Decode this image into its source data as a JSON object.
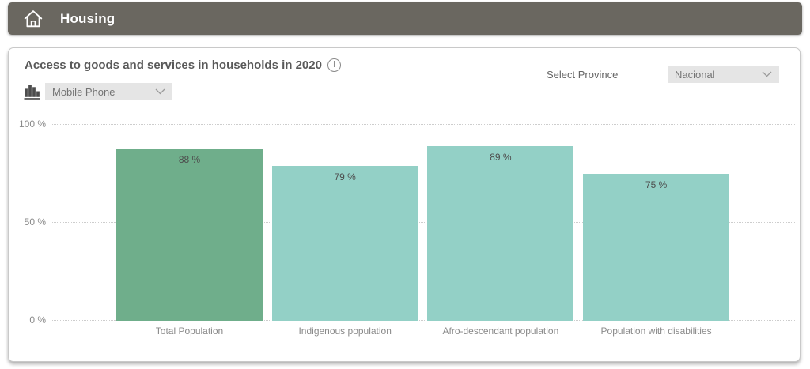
{
  "header": {
    "title": "Housing",
    "icon": "house-icon"
  },
  "panel": {
    "title": "Access to goods and services in households in 2020",
    "info_icon_glyph": "i",
    "province_filter": {
      "label": "Select Province",
      "selected": "Nacional",
      "icon": "chevron-down-icon"
    },
    "indicator_filter": {
      "selected": "Mobile Phone",
      "icon": "bar-chart-icon"
    }
  },
  "chart_data": {
    "type": "bar",
    "title": "Access to goods and services in households in 2020",
    "categories": [
      "Total Population",
      "Indigenous population",
      "Afro-descendant population",
      "Population with disabilities"
    ],
    "values": [
      88,
      79,
      89,
      75
    ],
    "value_labels": [
      "88 %",
      "79 %",
      "89 %",
      "75 %"
    ],
    "bar_colors": [
      "#6fae8b",
      "#93d0c6",
      "#93d0c6",
      "#93d0c6"
    ],
    "unit": "%",
    "xlabel": "",
    "ylabel": "",
    "ylim": [
      0,
      100
    ],
    "yticks": [
      {
        "value": 100,
        "label": "100 %"
      },
      {
        "value": 50,
        "label": "50 %"
      },
      {
        "value": 0,
        "label": "0 %"
      }
    ],
    "grid": "horizontal-dotted",
    "legend": "none"
  },
  "colors": {
    "header_bg": "#6a6760",
    "bar_primary": "#6fae8b",
    "bar_secondary": "#93d0c6",
    "dropdown_bg": "#e5e5e5",
    "card_border": "#c9c9c9"
  }
}
